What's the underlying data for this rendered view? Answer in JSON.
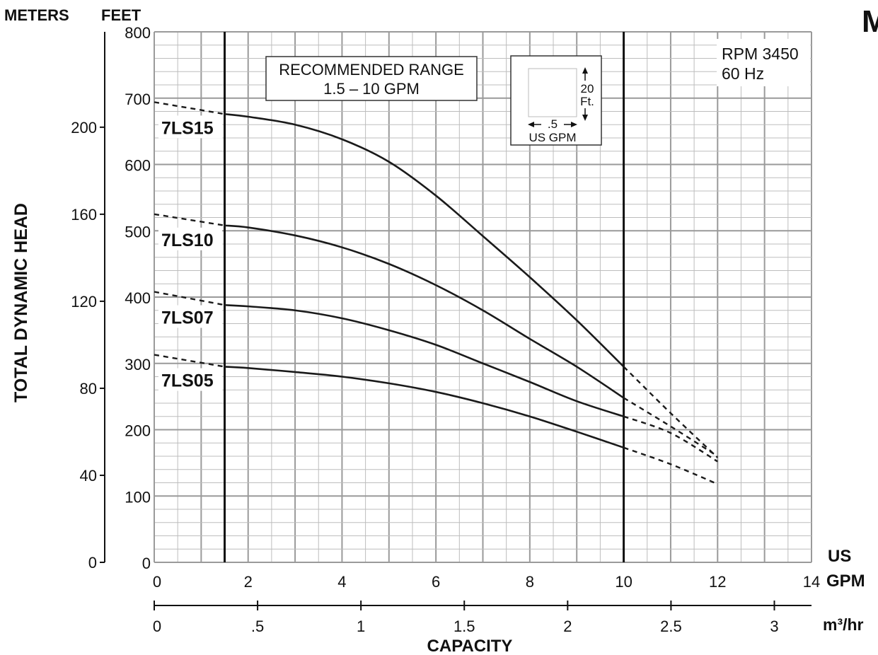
{
  "header": {
    "meters": "METERS",
    "feet": "FEET",
    "corner_glyph": "M"
  },
  "y_label": "TOTAL DYNAMIC HEAD",
  "x_label": "CAPACITY",
  "us_gpm_unit": [
    "US",
    "GPM"
  ],
  "m3hr_unit": "m³/hr",
  "recommended_range": [
    "RECOMMENDED RANGE",
    "1.5 – 10 GPM"
  ],
  "rpm_box": [
    "RPM 3450",
    "60 Hz"
  ],
  "scale_box": {
    "height": "20",
    "height_unit": "Ft.",
    "width": ".5",
    "width_unit": "US GPM"
  },
  "chart_data": {
    "type": "line",
    "x_unit": "US GPM",
    "y_unit": "FEET",
    "xlim": [
      0,
      14
    ],
    "ylim": [
      0,
      800
    ],
    "x_ticks": [
      "0",
      "2",
      "4",
      "6",
      "8",
      "10",
      "12",
      "14"
    ],
    "y_ticks_feet": [
      "0",
      "100",
      "200",
      "300",
      "400",
      "500",
      "600",
      "700",
      "800"
    ],
    "y_ticks_meters": [
      "0",
      "40",
      "80",
      "120",
      "160",
      "200"
    ],
    "m3hr_ticks": [
      "0",
      ".5",
      "1",
      "1.5",
      "2",
      "2.5",
      "3"
    ],
    "recommended_range_gpm": [
      1.5,
      10
    ],
    "series": [
      {
        "name": "7LS15",
        "solid": [
          [
            1.5,
            676
          ],
          [
            2,
            672
          ],
          [
            3,
            660
          ],
          [
            4,
            638
          ],
          [
            5,
            604
          ],
          [
            6,
            553
          ],
          [
            7,
            492
          ],
          [
            8,
            430
          ],
          [
            9,
            365
          ],
          [
            10,
            295
          ]
        ],
        "dashed_left": [
          [
            0,
            694
          ],
          [
            1.5,
            676
          ]
        ],
        "dashed_right": [
          [
            10,
            295
          ],
          [
            11,
            225
          ],
          [
            12,
            158
          ]
        ]
      },
      {
        "name": "7LS10",
        "solid": [
          [
            1.5,
            508
          ],
          [
            2,
            505
          ],
          [
            3,
            493
          ],
          [
            4,
            475
          ],
          [
            5,
            450
          ],
          [
            6,
            418
          ],
          [
            7,
            380
          ],
          [
            8,
            337
          ],
          [
            9,
            295
          ],
          [
            10,
            248
          ]
        ],
        "dashed_left": [
          [
            0,
            525
          ],
          [
            1.5,
            508
          ]
        ],
        "dashed_right": [
          [
            10,
            248
          ],
          [
            11,
            205
          ],
          [
            12,
            160
          ]
        ]
      },
      {
        "name": "7LS07",
        "solid": [
          [
            1.5,
            388
          ],
          [
            2,
            386
          ],
          [
            3,
            380
          ],
          [
            4,
            368
          ],
          [
            5,
            350
          ],
          [
            6,
            328
          ],
          [
            7,
            300
          ],
          [
            8,
            272
          ],
          [
            9,
            243
          ],
          [
            10,
            220
          ]
        ],
        "dashed_left": [
          [
            0,
            408
          ],
          [
            1.5,
            388
          ]
        ],
        "dashed_right": [
          [
            10,
            220
          ],
          [
            11,
            195
          ],
          [
            12,
            152
          ]
        ]
      },
      {
        "name": "7LS05",
        "solid": [
          [
            1.5,
            295
          ],
          [
            2,
            293
          ],
          [
            3,
            287
          ],
          [
            4,
            280
          ],
          [
            5,
            270
          ],
          [
            6,
            257
          ],
          [
            7,
            240
          ],
          [
            8,
            220
          ],
          [
            9,
            197
          ],
          [
            10,
            173
          ]
        ],
        "dashed_left": [
          [
            0,
            313
          ],
          [
            1.5,
            295
          ]
        ],
        "dashed_right": [
          [
            10,
            173
          ],
          [
            11,
            148
          ],
          [
            12,
            118
          ]
        ]
      }
    ]
  }
}
